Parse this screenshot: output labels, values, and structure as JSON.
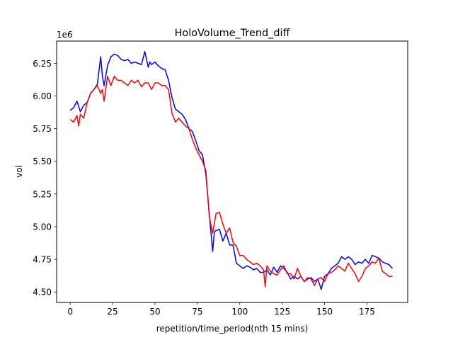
{
  "chart_data": {
    "type": "line",
    "title": "HoloVolume_Trend_diff",
    "xlabel": "repetition/time_period(nth 15 mins)",
    "ylabel": "vol",
    "y_offset_label": "1e6",
    "xlim": [
      -8,
      199
    ],
    "ylim": [
      4.42,
      6.42
    ],
    "xticks": [
      0,
      25,
      50,
      75,
      100,
      125,
      150,
      175
    ],
    "yticks": [
      4.5,
      4.75,
      5.0,
      5.25,
      5.5,
      5.75,
      6.0,
      6.25
    ],
    "ytick_labels": [
      "4.50",
      "4.75",
      "5.00",
      "5.25",
      "5.50",
      "5.75",
      "6.00",
      "6.25"
    ],
    "grid": false,
    "series": [
      {
        "color": "#0000ff",
        "x": [
          0,
          2,
          4,
          6,
          8,
          10,
          12,
          14,
          16,
          18,
          19,
          20,
          22,
          24,
          26,
          28,
          30,
          32,
          34,
          36,
          38,
          40,
          42,
          44,
          46,
          47,
          48,
          50,
          52,
          54,
          56,
          58,
          60,
          62,
          64,
          66,
          68,
          70,
          72,
          74,
          76,
          78,
          80,
          82,
          84,
          85,
          86,
          88,
          90,
          92,
          94,
          96,
          98,
          100,
          102,
          104,
          106,
          108,
          110,
          112,
          114,
          116,
          118,
          120,
          122,
          124,
          126,
          128,
          130,
          132,
          134,
          136,
          138,
          140,
          142,
          144,
          146,
          148,
          150,
          152,
          154,
          156,
          158,
          160,
          162,
          164,
          166,
          168,
          170,
          172,
          174,
          176,
          178,
          180,
          182,
          184,
          186,
          188,
          190
        ],
        "values": [
          5.89,
          5.91,
          5.96,
          5.88,
          5.93,
          5.95,
          6.02,
          6.05,
          6.09,
          6.3,
          6.15,
          6.08,
          6.23,
          6.3,
          6.32,
          6.31,
          6.28,
          6.27,
          6.28,
          6.25,
          6.26,
          6.25,
          6.24,
          6.34,
          6.22,
          6.26,
          6.24,
          6.26,
          6.23,
          6.21,
          6.2,
          6.12,
          5.99,
          5.9,
          5.88,
          5.86,
          5.82,
          5.75,
          5.73,
          5.66,
          5.58,
          5.55,
          5.4,
          5.1,
          4.81,
          4.96,
          4.97,
          4.98,
          4.89,
          4.95,
          4.86,
          4.86,
          4.72,
          4.7,
          4.68,
          4.7,
          4.69,
          4.67,
          4.68,
          4.65,
          4.65,
          4.67,
          4.63,
          4.69,
          4.65,
          4.7,
          4.68,
          4.65,
          4.6,
          4.62,
          4.6,
          4.62,
          4.58,
          4.6,
          4.61,
          4.58,
          4.6,
          4.52,
          4.62,
          4.64,
          4.68,
          4.7,
          4.72,
          4.77,
          4.75,
          4.77,
          4.75,
          4.71,
          4.73,
          4.72,
          4.75,
          4.72,
          4.78,
          4.77,
          4.76,
          4.73,
          4.72,
          4.71,
          4.68
        ]
      },
      {
        "color": "#ff0000",
        "x": [
          0,
          2,
          4,
          5,
          6,
          8,
          10,
          12,
          14,
          16,
          18,
          19,
          20,
          22,
          24,
          26,
          28,
          30,
          32,
          34,
          36,
          38,
          40,
          42,
          44,
          46,
          48,
          50,
          52,
          54,
          56,
          58,
          60,
          62,
          64,
          66,
          68,
          70,
          72,
          74,
          76,
          78,
          80,
          82,
          84,
          86,
          88,
          90,
          92,
          94,
          96,
          98,
          100,
          102,
          104,
          106,
          108,
          110,
          112,
          114,
          115,
          116,
          118,
          120,
          122,
          124,
          126,
          128,
          130,
          132,
          134,
          136,
          138,
          140,
          142,
          144,
          146,
          148,
          150,
          152,
          154,
          156,
          158,
          160,
          162,
          164,
          166,
          168,
          170,
          172,
          174,
          176,
          178,
          180,
          182,
          184,
          186,
          188,
          190
        ],
        "values": [
          5.82,
          5.8,
          5.85,
          5.77,
          5.86,
          5.83,
          5.95,
          6.02,
          6.05,
          6.08,
          6.02,
          6.05,
          5.96,
          6.15,
          6.08,
          6.15,
          6.12,
          6.12,
          6.1,
          6.08,
          6.12,
          6.1,
          6.12,
          6.07,
          6.1,
          6.1,
          6.05,
          6.1,
          6.1,
          6.08,
          6.08,
          6.05,
          5.87,
          5.8,
          5.83,
          5.8,
          5.77,
          5.75,
          5.67,
          5.6,
          5.55,
          5.5,
          5.43,
          5.08,
          4.95,
          5.1,
          5.11,
          5.02,
          4.95,
          4.99,
          4.88,
          4.85,
          4.78,
          4.78,
          4.75,
          4.73,
          4.71,
          4.72,
          4.7,
          4.67,
          4.54,
          4.7,
          4.66,
          4.64,
          4.63,
          4.67,
          4.7,
          4.64,
          4.64,
          4.6,
          4.68,
          4.62,
          4.58,
          4.61,
          4.6,
          4.55,
          4.6,
          4.61,
          4.58,
          4.64,
          4.65,
          4.67,
          4.7,
          4.68,
          4.66,
          4.72,
          4.68,
          4.64,
          4.58,
          4.62,
          4.68,
          4.7,
          4.73,
          4.72,
          4.76,
          4.66,
          4.64,
          4.62,
          4.62
        ]
      }
    ]
  }
}
